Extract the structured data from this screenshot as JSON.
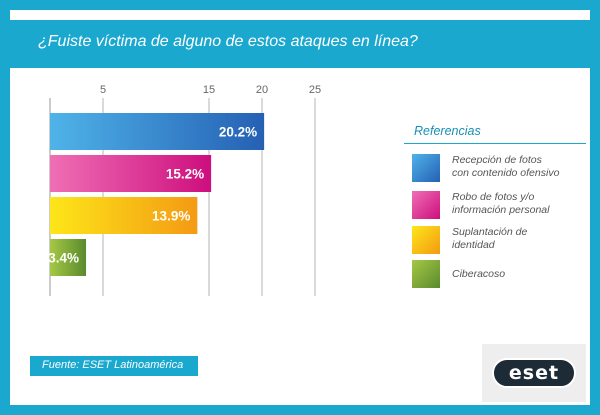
{
  "header": {
    "title": "¿Fuiste víctima de alguno de estos ataques en línea?"
  },
  "chart_data": {
    "type": "bar",
    "orientation": "horizontal",
    "xlim": [
      0,
      25
    ],
    "xticks": [
      "5",
      "15",
      "20",
      "25"
    ],
    "xtick_values": [
      5,
      15,
      20,
      25
    ],
    "grid": true,
    "categories": [
      "Recepción de fotos con contenido ofensivo",
      "Robo de fotos y/o información personal",
      "Suplantación de identidad",
      "Ciberacoso"
    ],
    "values": [
      20.2,
      15.2,
      13.9,
      3.4
    ],
    "data_labels": [
      "20.2%",
      "15.2%",
      "13.9%",
      "3.4%"
    ],
    "colors": [
      [
        "#4fb3e8",
        "#2560b4"
      ],
      [
        "#ef6fb4",
        "#cd0e7e"
      ],
      [
        "#fde619",
        "#f49a14"
      ],
      [
        "#a5c844",
        "#5a8a2e"
      ]
    ],
    "legend_position": "right"
  },
  "legend": {
    "title": "Referencias",
    "items": [
      {
        "label_lines": [
          "Recepción de fotos",
          "con contenido ofensivo"
        ]
      },
      {
        "label_lines": [
          "Robo de fotos y/o",
          "información personal"
        ]
      },
      {
        "label_lines": [
          "Suplantación de",
          "identidad"
        ]
      },
      {
        "label_lines": [
          "Ciberacoso"
        ]
      }
    ]
  },
  "footer": {
    "source": "Fuente: ESET Latinoamérica",
    "logo_text": "eset"
  }
}
